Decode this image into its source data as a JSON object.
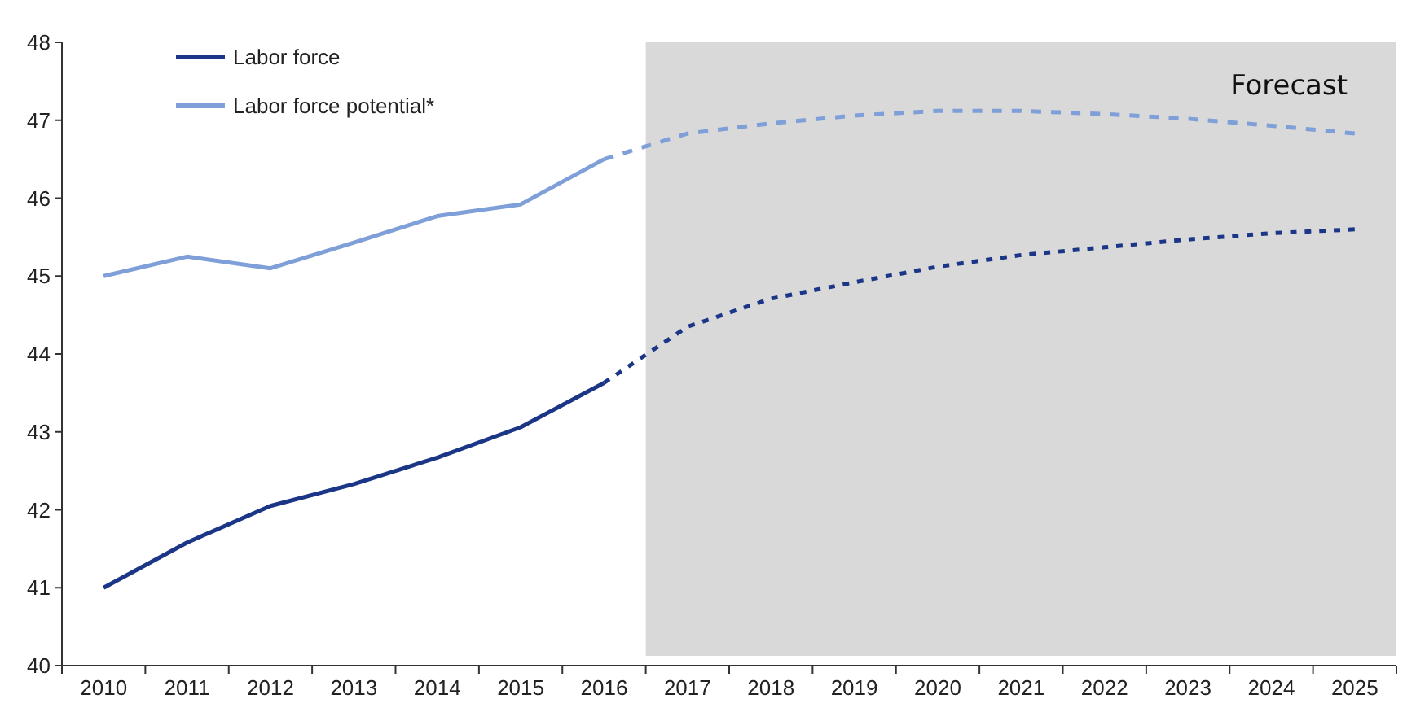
{
  "chart_data": {
    "type": "line",
    "categories": [
      "2010",
      "2011",
      "2012",
      "2013",
      "2014",
      "2015",
      "2016",
      "2017",
      "2018",
      "2019",
      "2020",
      "2021",
      "2022",
      "2023",
      "2024",
      "2025"
    ],
    "series": [
      {
        "name": "Labor force",
        "color": "#1c3687",
        "line_style": "solid",
        "values": [
          41.0,
          41.58,
          42.05,
          42.33,
          42.67,
          43.06,
          43.63,
          null,
          null,
          null,
          null,
          null,
          null,
          null,
          null,
          null
        ]
      },
      {
        "name": "Labor force potential*",
        "color": "#7f9fd8",
        "line_style": "solid",
        "values": [
          45.0,
          45.25,
          45.1,
          45.43,
          45.77,
          45.92,
          46.5,
          null,
          null,
          null,
          null,
          null,
          null,
          null,
          null,
          null
        ]
      },
      {
        "color": "#1c3687",
        "line_style": "dotted",
        "values": [
          null,
          null,
          null,
          null,
          null,
          null,
          43.63,
          44.35,
          44.71,
          44.92,
          45.12,
          45.27,
          45.37,
          45.47,
          45.55,
          45.6
        ]
      },
      {
        "color": "#7f9fd8",
        "line_style": "dashed",
        "values": [
          null,
          null,
          null,
          null,
          null,
          null,
          46.5,
          46.83,
          46.96,
          47.06,
          47.12,
          47.12,
          47.08,
          47.02,
          46.93,
          46.83
        ]
      }
    ],
    "ylim": [
      40,
      48
    ],
    "yticks": [
      40,
      41,
      42,
      43,
      44,
      45,
      46,
      47,
      48
    ],
    "bands": [
      {
        "axis": "x",
        "from": "2017",
        "to": "2025",
        "label": "Forecast",
        "color": "#d9d9d9"
      }
    ],
    "legend": "top left",
    "grid": false
  }
}
